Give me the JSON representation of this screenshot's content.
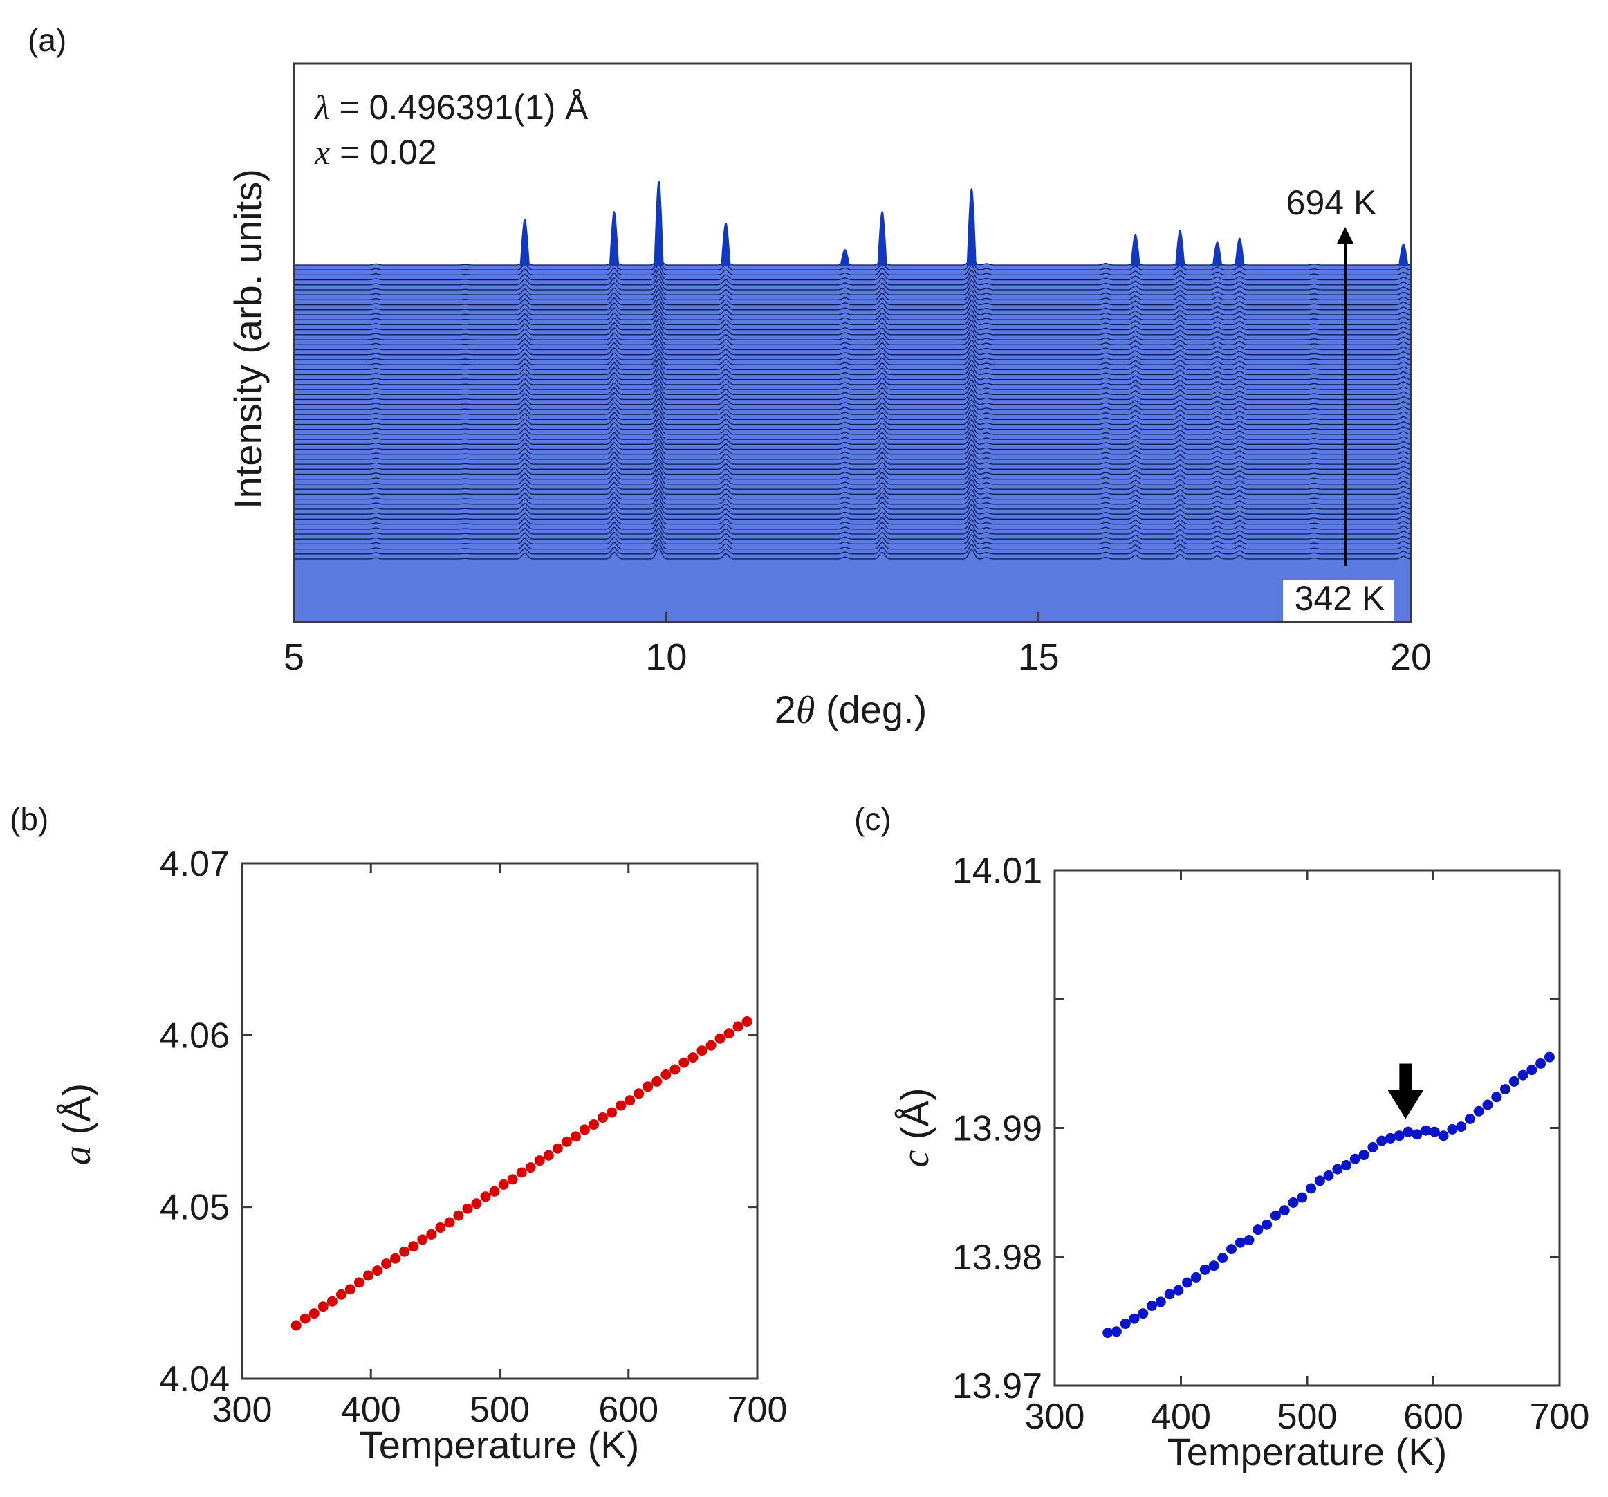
{
  "colors": {
    "trace_fill": "#5b7be0",
    "trace_line": "#0b1a5a",
    "peak": "#1238c0",
    "series_a": "#d80000",
    "series_c": "#0a14c8",
    "frame": "#3a3a3a",
    "text": "#1a1a1a"
  },
  "chart_data": [
    {
      "panel": "a",
      "panel_label": "(a)",
      "type": "line",
      "title": "",
      "xlabel_prefix": "2",
      "xlabel_symbol": "θ",
      "xlabel_suffix": " (deg.)",
      "ylabel": "Intensity (arb. units)",
      "xlim": [
        5,
        20
      ],
      "xticks": [
        "5",
        "10",
        "15",
        "20"
      ],
      "annotations": {
        "lambda_symbol": "λ",
        "lambda_value": " = 0.496391(1) Å",
        "x_symbol": "x",
        "x_value": " = 0.02",
        "temp_high": "694 K",
        "temp_low": "342 K"
      },
      "temperature_range_K": [
        342,
        694
      ],
      "peak_positions_deg": [
        6.1,
        7.3,
        8.1,
        9.3,
        9.9,
        10.8,
        12.4,
        12.9,
        14.1,
        14.3,
        15.9,
        16.3,
        16.9,
        17.4,
        17.7,
        18.7,
        19.9
      ],
      "peak_relative_heights": [
        0.25,
        0.1,
        1.2,
        1.4,
        2.2,
        1.1,
        0.4,
        1.4,
        2.0,
        0.3,
        0.35,
        0.8,
        0.9,
        0.6,
        0.7,
        0.2,
        0.55
      ]
    },
    {
      "panel": "b",
      "panel_label": "(b)",
      "type": "scatter",
      "title": "",
      "xlabel": "Temperature (K)",
      "ylabel_symbol": "a",
      "ylabel_unit": " (Å)",
      "xlim": [
        300,
        700
      ],
      "ylim": [
        4.04,
        4.07
      ],
      "xticks": [
        "300",
        "400",
        "500",
        "600",
        "700"
      ],
      "yticks": [
        "4.04",
        "4.05",
        "4.06",
        "4.07"
      ],
      "series": [
        {
          "name": "a",
          "x": [
            342,
            349,
            356,
            363,
            370,
            377,
            384,
            391,
            398,
            405,
            412,
            419,
            426,
            433,
            440,
            447,
            454,
            461,
            468,
            475,
            482,
            489,
            496,
            503,
            510,
            517,
            524,
            531,
            538,
            545,
            552,
            559,
            566,
            573,
            580,
            587,
            594,
            601,
            608,
            615,
            622,
            629,
            636,
            643,
            650,
            657,
            664,
            671,
            678,
            685,
            692
          ],
          "y": [
            4.0431,
            4.0435,
            4.0438,
            4.0442,
            4.0445,
            4.0449,
            4.0452,
            4.0456,
            4.046,
            4.0463,
            4.0467,
            4.047,
            4.0474,
            4.0477,
            4.0481,
            4.0484,
            4.0488,
            4.0491,
            4.0495,
            4.0499,
            4.0502,
            4.0506,
            4.0509,
            4.0513,
            4.0516,
            4.052,
            4.0523,
            4.0527,
            4.053,
            4.0534,
            4.0538,
            4.0541,
            4.0545,
            4.0548,
            4.0552,
            4.0555,
            4.0559,
            4.0562,
            4.0566,
            4.057,
            4.0573,
            4.0577,
            4.058,
            4.0584,
            4.0587,
            4.0591,
            4.0594,
            4.0598,
            4.0601,
            4.0605,
            4.0608
          ]
        }
      ]
    },
    {
      "panel": "c",
      "panel_label": "(c)",
      "type": "scatter",
      "title": "",
      "xlabel": "Temperature (K)",
      "ylabel_symbol": "c",
      "ylabel_unit": " (Å)",
      "xlim": [
        300,
        700
      ],
      "ylim": [
        13.97,
        14.01
      ],
      "xticks": [
        "300",
        "400",
        "500",
        "600",
        "700"
      ],
      "yticks": [
        "13.97",
        "13.98",
        "13.99",
        "14.01"
      ],
      "arrow_at_K": 578,
      "series": [
        {
          "name": "c",
          "x": [
            342,
            349,
            356,
            363,
            370,
            377,
            384,
            391,
            398,
            405,
            412,
            419,
            426,
            433,
            440,
            447,
            454,
            461,
            468,
            475,
            482,
            489,
            496,
            503,
            510,
            517,
            524,
            531,
            538,
            545,
            552,
            559,
            566,
            573,
            580,
            587,
            594,
            601,
            608,
            615,
            622,
            629,
            636,
            643,
            650,
            657,
            664,
            671,
            678,
            685,
            692
          ],
          "y": [
            13.9741,
            13.9742,
            13.9748,
            13.9752,
            13.9756,
            13.9762,
            13.9765,
            13.9771,
            13.9774,
            13.978,
            13.9784,
            13.979,
            13.9793,
            13.9799,
            13.9806,
            13.9811,
            13.9813,
            13.9821,
            13.9825,
            13.9832,
            13.9836,
            13.9842,
            13.9846,
            13.9853,
            13.9859,
            13.9863,
            13.9868,
            13.9871,
            13.9876,
            13.9879,
            13.9885,
            13.989,
            13.9892,
            13.9894,
            13.9897,
            13.9895,
            13.9898,
            13.9897,
            13.9894,
            13.9899,
            13.9901,
            13.9907,
            13.9913,
            13.9918,
            13.9924,
            13.993,
            13.9936,
            13.9941,
            13.9945,
            13.995,
            13.9955
          ]
        }
      ]
    }
  ]
}
